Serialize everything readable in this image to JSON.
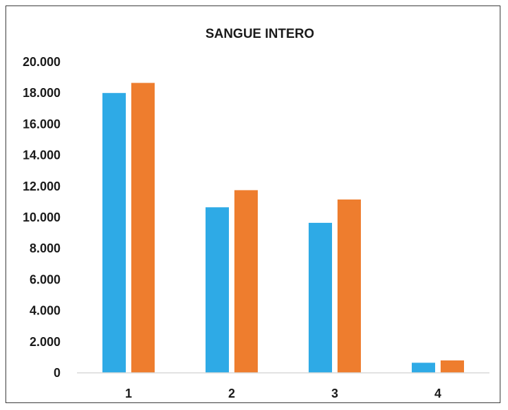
{
  "chart_data": {
    "type": "bar",
    "title": "SANGUE INTERO",
    "categories": [
      "1",
      "2",
      "3",
      "4"
    ],
    "series": [
      {
        "values": [
          18000,
          10650,
          9650,
          650
        ]
      },
      {
        "values": [
          18650,
          11750,
          11150,
          800
        ]
      }
    ],
    "ylim": [
      0,
      20000
    ],
    "yticks": [
      "0",
      "2.000",
      "4.000",
      "6.000",
      "8.000",
      "10.000",
      "12.000",
      "14.000",
      "16.000",
      "18.000",
      "20.000"
    ],
    "colors": [
      "#2eaae6",
      "#ee7d2e"
    ],
    "grid": false,
    "legend": "none"
  }
}
